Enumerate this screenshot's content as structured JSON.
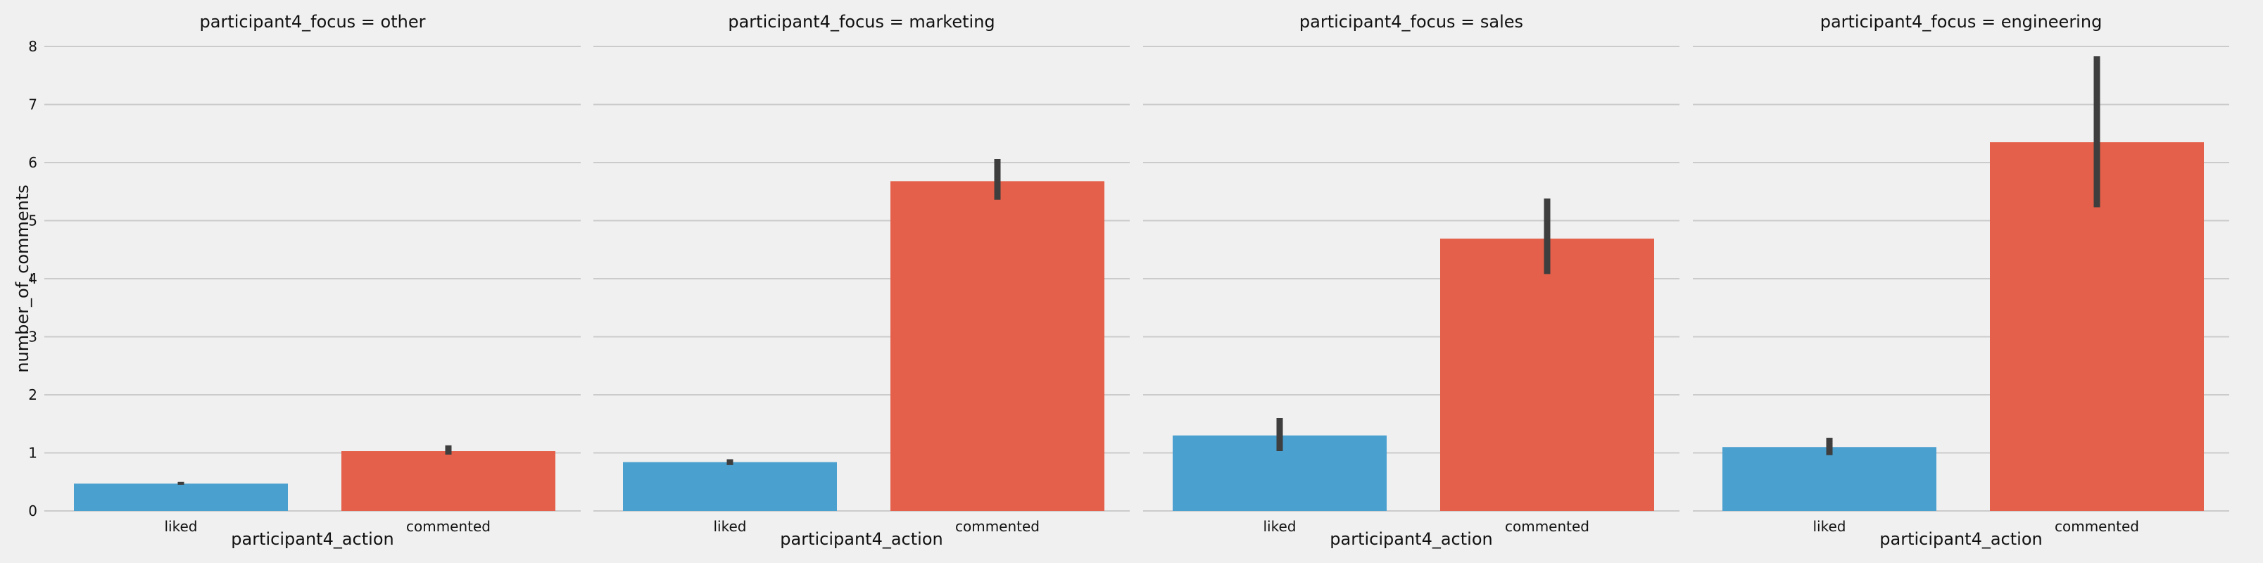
{
  "chart_data": {
    "type": "bar",
    "ylabel": "number_of_comments",
    "xlabel": "participant4_action",
    "ylim": [
      0,
      8
    ],
    "yticks": [
      0,
      1,
      2,
      3,
      4,
      5,
      6,
      7,
      8
    ],
    "grid": true,
    "categories": [
      "liked",
      "commented"
    ],
    "colors": {
      "liked": "#4aa0cf",
      "commented": "#e4604a",
      "errorbar": "#3e3e3e",
      "grid": "#cbcbcb",
      "background": "#f0f0f0"
    },
    "panels": [
      {
        "title": "participant4_focus = other",
        "values": [
          0.47,
          1.03
        ],
        "ci": [
          [
            0.45,
            0.5
          ],
          [
            0.97,
            1.13
          ]
        ]
      },
      {
        "title": "participant4_focus = marketing",
        "values": [
          0.84,
          5.68
        ],
        "ci": [
          [
            0.79,
            0.89
          ],
          [
            5.36,
            6.06
          ]
        ]
      },
      {
        "title": "participant4_focus = sales",
        "values": [
          1.3,
          4.69
        ],
        "ci": [
          [
            1.03,
            1.6
          ],
          [
            4.08,
            5.38
          ]
        ]
      },
      {
        "title": "participant4_focus = engineering",
        "values": [
          1.1,
          6.35
        ],
        "ci": [
          [
            0.96,
            1.26
          ],
          [
            5.23,
            7.83
          ]
        ]
      }
    ]
  }
}
